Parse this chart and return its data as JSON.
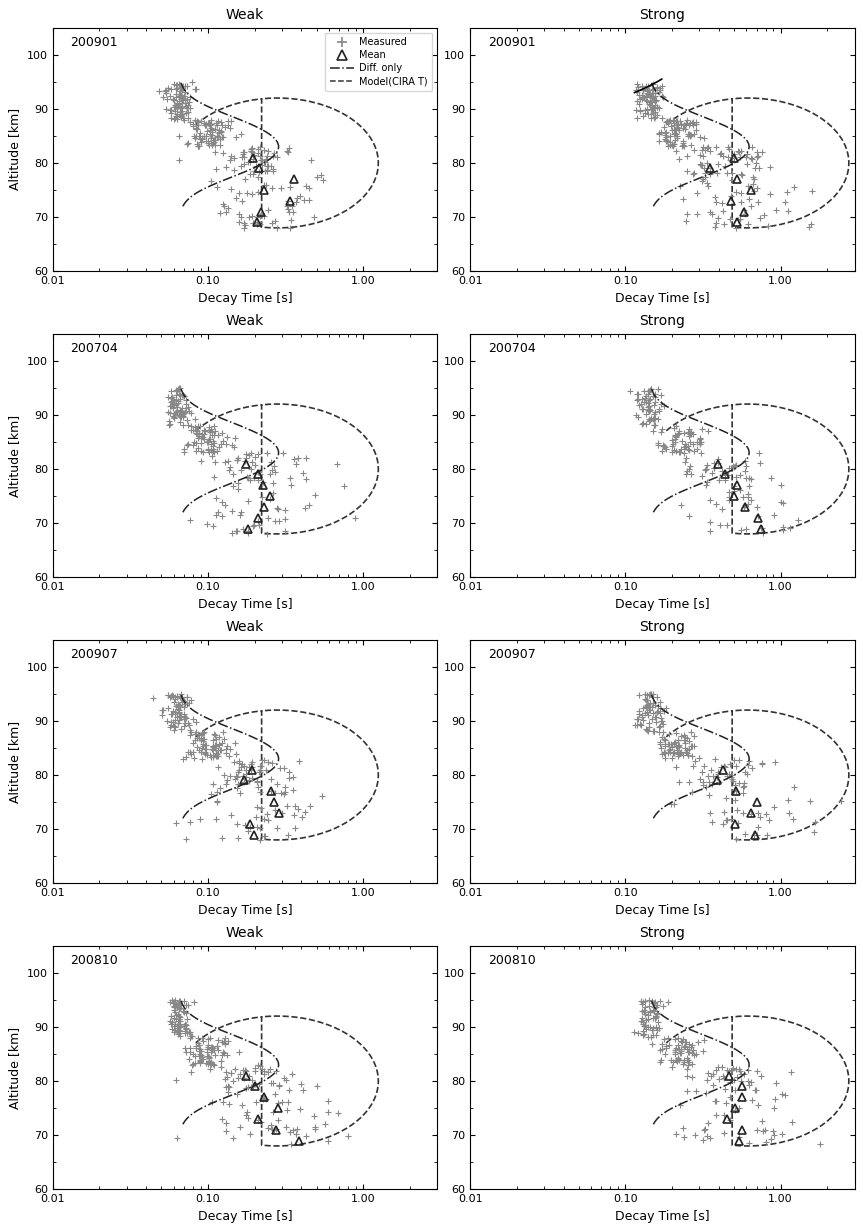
{
  "panels": [
    {
      "label": "200901",
      "type": "Weak",
      "row": 0,
      "col": 0,
      "has_legend": true
    },
    {
      "label": "200901",
      "type": "Strong",
      "row": 0,
      "col": 1,
      "has_legend": false
    },
    {
      "label": "200704",
      "type": "Weak",
      "row": 1,
      "col": 0,
      "has_legend": false
    },
    {
      "label": "200704",
      "type": "Strong",
      "row": 1,
      "col": 1,
      "has_legend": false
    },
    {
      "label": "200907",
      "type": "Weak",
      "row": 2,
      "col": 0,
      "has_legend": false
    },
    {
      "label": "200907",
      "type": "Strong",
      "row": 2,
      "col": 1,
      "has_legend": false
    },
    {
      "label": "200810",
      "type": "Weak",
      "row": 3,
      "col": 0,
      "has_legend": false
    },
    {
      "label": "200810",
      "type": "Strong",
      "row": 3,
      "col": 1,
      "has_legend": false
    }
  ],
  "xlim": [
    0.01,
    3.0
  ],
  "ylim": [
    60,
    105
  ],
  "xlabel": "Decay Time [s]",
  "ylabel": "Altitude [km]",
  "yticks": [
    60,
    70,
    80,
    90,
    100
  ],
  "marker_plus_color": "#888888",
  "marker_tri_color": "#222222",
  "line_difonly_color": "#222222",
  "line_model_color": "#333333",
  "background_color": "#ffffff",
  "legend_fontsize": 7,
  "axis_label_fontsize": 9,
  "tick_fontsize": 8,
  "title_fontsize": 10,
  "panel_label_fontsize": 9
}
